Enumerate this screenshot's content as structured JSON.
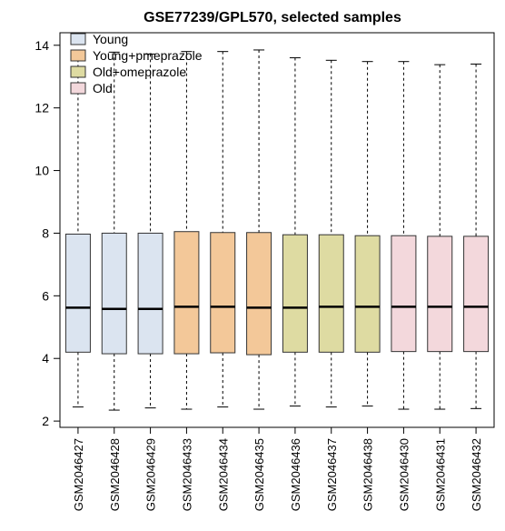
{
  "chart_data": {
    "type": "boxplot",
    "title": "GSE77239/GPL570, selected samples",
    "xlabel": "",
    "ylabel": "",
    "ylim": [
      1.8,
      14.4
    ],
    "yticks": [
      2,
      4,
      6,
      8,
      10,
      12,
      14
    ],
    "grid": false,
    "legend_position": "top-left",
    "groups": [
      {
        "name": "Young",
        "color": "#dbe4f0"
      },
      {
        "name": "Young+pmeprazole",
        "color": "#f3c899"
      },
      {
        "name": "Old+omeprazole",
        "color": "#dedba2"
      },
      {
        "name": "Old",
        "color": "#f3d8dc"
      }
    ],
    "categories": [
      "GSM2046427",
      "GSM2046428",
      "GSM2046429",
      "GSM2046433",
      "GSM2046434",
      "GSM2046435",
      "GSM2046436",
      "GSM2046437",
      "GSM2046438",
      "GSM2046430",
      "GSM2046431",
      "GSM2046432"
    ],
    "boxes": [
      {
        "sample": "GSM2046427",
        "group": 0,
        "min": 2.45,
        "q1": 4.2,
        "median": 5.62,
        "q3": 7.97,
        "max": 13.72
      },
      {
        "sample": "GSM2046428",
        "group": 0,
        "min": 2.35,
        "q1": 4.15,
        "median": 5.58,
        "q3": 8.0,
        "max": 13.78
      },
      {
        "sample": "GSM2046429",
        "group": 0,
        "min": 2.42,
        "q1": 4.15,
        "median": 5.58,
        "q3": 8.0,
        "max": 13.72
      },
      {
        "sample": "GSM2046433",
        "group": 1,
        "min": 2.38,
        "q1": 4.15,
        "median": 5.65,
        "q3": 8.05,
        "max": 13.8
      },
      {
        "sample": "GSM2046434",
        "group": 1,
        "min": 2.45,
        "q1": 4.18,
        "median": 5.65,
        "q3": 8.02,
        "max": 13.8
      },
      {
        "sample": "GSM2046435",
        "group": 1,
        "min": 2.38,
        "q1": 4.12,
        "median": 5.62,
        "q3": 8.02,
        "max": 13.85
      },
      {
        "sample": "GSM2046436",
        "group": 2,
        "min": 2.48,
        "q1": 4.2,
        "median": 5.62,
        "q3": 7.95,
        "max": 13.6
      },
      {
        "sample": "GSM2046437",
        "group": 2,
        "min": 2.45,
        "q1": 4.2,
        "median": 5.65,
        "q3": 7.95,
        "max": 13.52
      },
      {
        "sample": "GSM2046438",
        "group": 2,
        "min": 2.48,
        "q1": 4.2,
        "median": 5.65,
        "q3": 7.92,
        "max": 13.48
      },
      {
        "sample": "GSM2046430",
        "group": 3,
        "min": 2.38,
        "q1": 4.22,
        "median": 5.65,
        "q3": 7.92,
        "max": 13.48
      },
      {
        "sample": "GSM2046431",
        "group": 3,
        "min": 2.38,
        "q1": 4.22,
        "median": 5.65,
        "q3": 7.9,
        "max": 13.38
      },
      {
        "sample": "GSM2046432",
        "group": 3,
        "min": 2.4,
        "q1": 4.22,
        "median": 5.65,
        "q3": 7.9,
        "max": 13.4
      }
    ]
  }
}
